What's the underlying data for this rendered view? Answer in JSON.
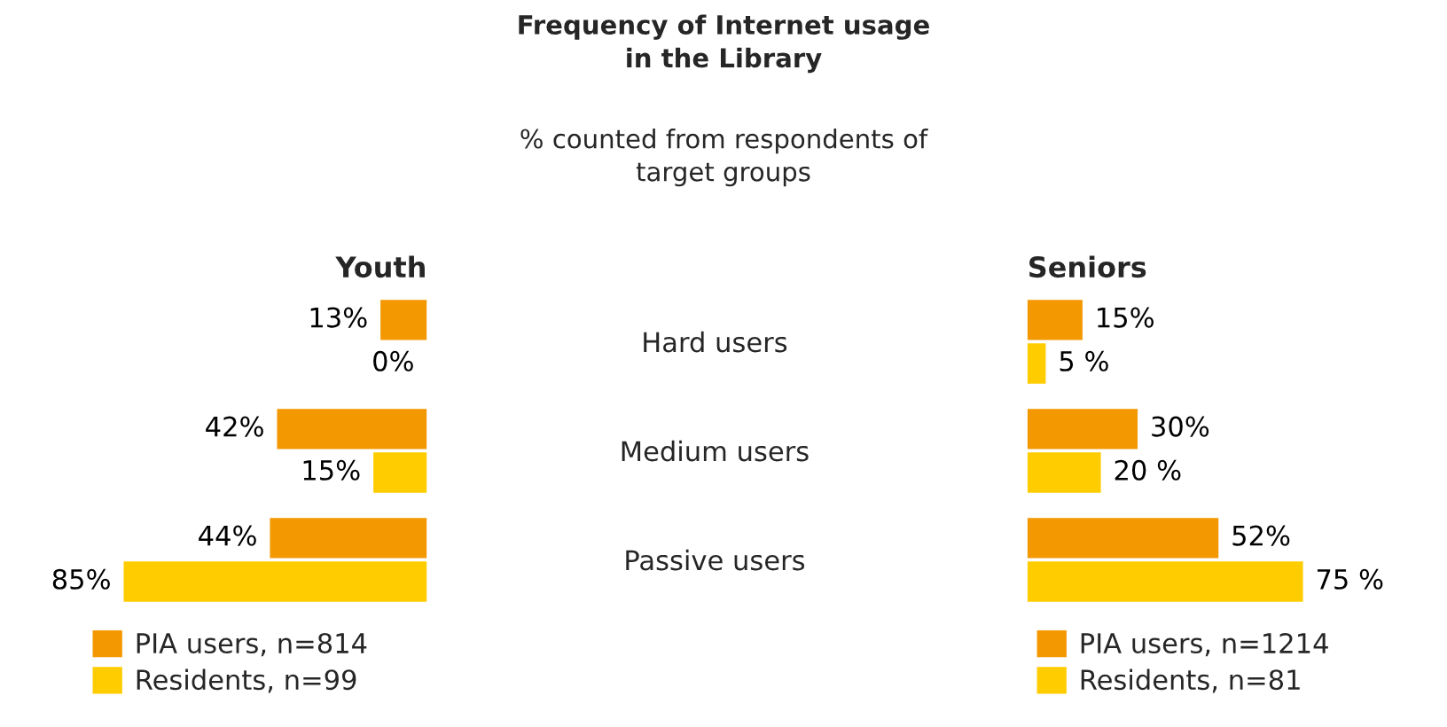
{
  "chart_data": [
    {
      "type": "other",
      "title": "Frequency of Internet usage\nin the Library",
      "subtitle": "% counted from respondents of\ntarget groups"
    },
    {
      "type": "bar",
      "orientation": "horizontal",
      "title": "Youth",
      "categories": [
        null,
        null,
        null
      ],
      "tick_labels": false,
      "legend": "bottom",
      "grid": false,
      "series": [
        {
          "name": "PIA users, n=814",
          "color": "#f39800",
          "values": [
            13,
            42,
            44
          ],
          "value_labels": [
            "13%",
            "42%",
            "44%"
          ]
        },
        {
          "name": "Residents, n=99",
          "color": "#ffcc00",
          "values": [
            0,
            15,
            85
          ],
          "value_labels": [
            "0%",
            "15%",
            "85%"
          ]
        }
      ]
    },
    {
      "type": "bar",
      "orientation": "horizontal",
      "title": "Seniors",
      "categories": [
        "Hard users",
        "Medium users",
        "Passive users"
      ],
      "tick_labels": "y",
      "legend": "bottom",
      "grid": false,
      "series": [
        {
          "name": "PIA users, n=1214",
          "color": "#f39800",
          "values": [
            15,
            30,
            52
          ],
          "value_labels": [
            "15%",
            "30%",
            "52%"
          ]
        },
        {
          "name": "Residents, n=81",
          "color": "#ffcc00",
          "values": [
            5,
            20,
            75
          ],
          "value_labels": [
            "5 %",
            "20 %",
            "75 %"
          ]
        }
      ]
    }
  ]
}
